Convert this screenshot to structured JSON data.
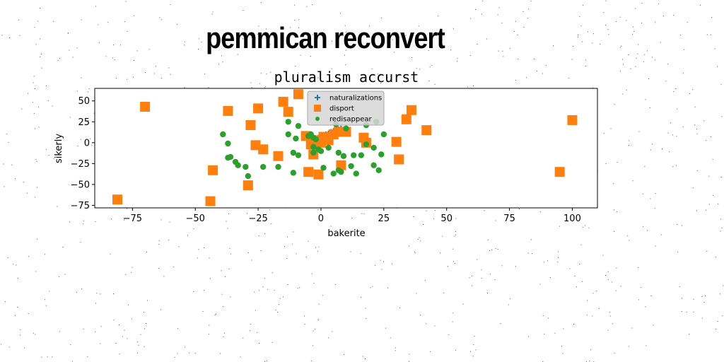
{
  "headline": "pemmican reconvert",
  "chart_data": {
    "type": "scatter",
    "title": "pluralism accurst",
    "xlabel": "bakerite",
    "ylabel": "sikerly",
    "xlim": [
      -90,
      110
    ],
    "ylim": [
      -78,
      65
    ],
    "xticks": [
      -75,
      -50,
      -25,
      0,
      25,
      50,
      75,
      100
    ],
    "yticks": [
      -75,
      -50,
      -25,
      0,
      25,
      50
    ],
    "legend_position": "top-center",
    "series": [
      {
        "name": "naturalizations",
        "marker": "plus",
        "color": "#1f77b4",
        "points": [
          [
            -4,
            0
          ],
          [
            -3,
            3
          ],
          [
            -2,
            5
          ],
          [
            -1,
            6
          ],
          [
            0,
            7
          ],
          [
            1,
            9
          ],
          [
            2,
            10
          ],
          [
            3,
            11
          ],
          [
            4,
            13
          ],
          [
            5,
            14
          ],
          [
            6,
            15
          ],
          [
            7,
            16
          ],
          [
            8,
            17
          ]
        ]
      },
      {
        "name": "disport",
        "marker": "square",
        "color": "#ff7f0e",
        "points": [
          [
            -81,
            -68
          ],
          [
            -70,
            43
          ],
          [
            -44,
            -70
          ],
          [
            -43,
            -33
          ],
          [
            -37,
            38
          ],
          [
            -28,
            21
          ],
          [
            -29,
            -51
          ],
          [
            -25,
            41
          ],
          [
            -26,
            -3
          ],
          [
            -23,
            -8
          ],
          [
            -17,
            -16
          ],
          [
            -15,
            49
          ],
          [
            -13,
            37
          ],
          [
            -9,
            58
          ],
          [
            -6,
            8
          ],
          [
            -4,
            -2
          ],
          [
            -3,
            3
          ],
          [
            -3,
            -14
          ],
          [
            -5,
            -35
          ],
          [
            -1,
            -38
          ],
          [
            0,
            0
          ],
          [
            1,
            7
          ],
          [
            2,
            5
          ],
          [
            3,
            3
          ],
          [
            5,
            10
          ],
          [
            7,
            13
          ],
          [
            8,
            -27
          ],
          [
            10,
            13
          ],
          [
            17,
            6
          ],
          [
            18,
            0
          ],
          [
            30,
            1
          ],
          [
            31,
            -20
          ],
          [
            34,
            28
          ],
          [
            36,
            39
          ],
          [
            42,
            15
          ],
          [
            95,
            -35
          ],
          [
            100,
            27
          ]
        ]
      },
      {
        "name": "redisappear",
        "marker": "circle",
        "color": "#2ca02c",
        "points": [
          [
            -39,
            10
          ],
          [
            -37,
            -1
          ],
          [
            -37,
            -18
          ],
          [
            -36,
            -17
          ],
          [
            -34,
            -23
          ],
          [
            -33,
            -27
          ],
          [
            -30,
            -29
          ],
          [
            -29,
            -40
          ],
          [
            -23,
            -29
          ],
          [
            -17,
            -29
          ],
          [
            -13,
            25
          ],
          [
            -13,
            10
          ],
          [
            -11,
            -12
          ],
          [
            -11,
            -36
          ],
          [
            -10,
            5
          ],
          [
            -9,
            20
          ],
          [
            -9,
            -15
          ],
          [
            -5,
            8
          ],
          [
            -4,
            10
          ],
          [
            -3,
            6
          ],
          [
            -3,
            -5
          ],
          [
            -3,
            -12
          ],
          [
            -2,
            4
          ],
          [
            -1,
            -8
          ],
          [
            0,
            -10
          ],
          [
            1,
            -30
          ],
          [
            3,
            -6
          ],
          [
            5,
            -37
          ],
          [
            6,
            22
          ],
          [
            7,
            -33
          ],
          [
            7,
            -12
          ],
          [
            8,
            -35
          ],
          [
            9,
            -16
          ],
          [
            10,
            17
          ],
          [
            12,
            -28
          ],
          [
            13,
            -15
          ],
          [
            14,
            -37
          ],
          [
            16,
            -15
          ],
          [
            18,
            -2
          ],
          [
            18,
            21
          ],
          [
            21,
            -6
          ],
          [
            21,
            -27
          ],
          [
            22,
            25
          ],
          [
            23,
            -33
          ],
          [
            24,
            -14
          ],
          [
            25,
            10
          ]
        ]
      }
    ]
  }
}
